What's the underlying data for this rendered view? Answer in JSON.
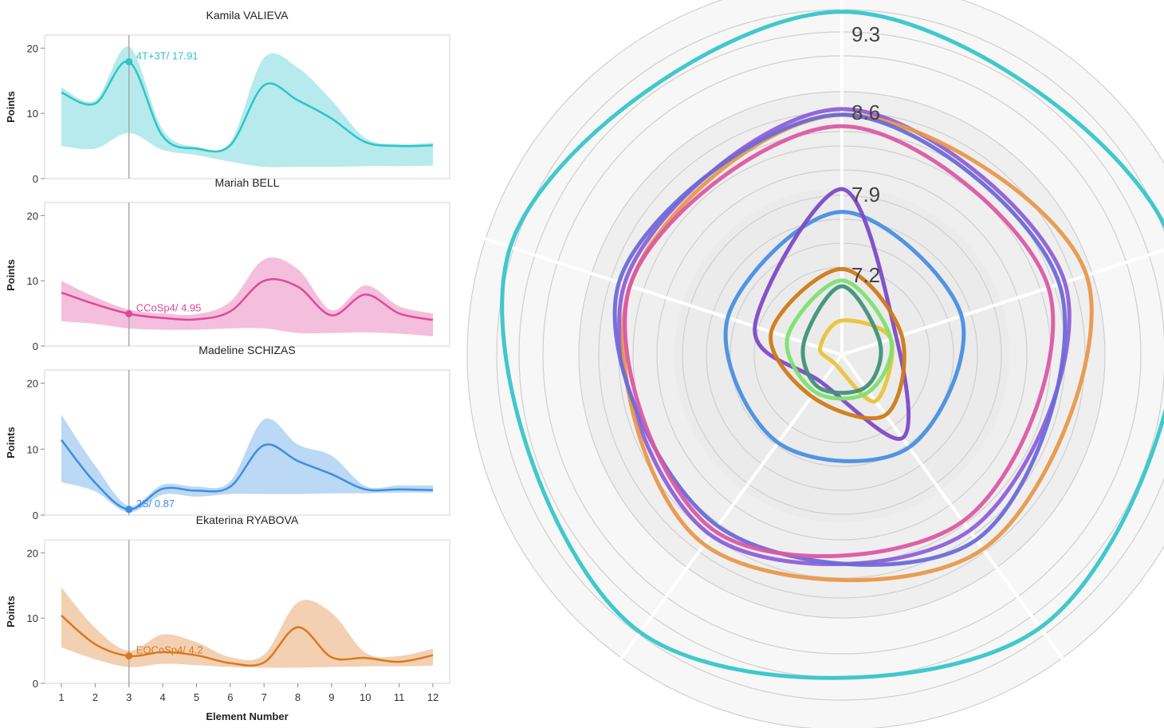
{
  "chart_data": [
    {
      "type": "line",
      "title": "Kamila VALIEVA",
      "ylabel": "Points",
      "xlabel": "",
      "color": "#2ec4c8",
      "ylim": [
        0,
        22
      ],
      "yticks": [
        0,
        10,
        20
      ],
      "x": [
        1,
        2,
        3,
        4,
        5,
        6,
        7,
        8,
        9,
        10,
        11,
        12
      ],
      "values": [
        13.2,
        11.5,
        17.91,
        6.5,
        4.6,
        5.1,
        14.3,
        12,
        9.2,
        5.6,
        5.0,
        5.1
      ],
      "upper": [
        14,
        12,
        20.2,
        7.5,
        4.9,
        5.6,
        18.5,
        17,
        12,
        6.2,
        5.3,
        5.5
      ],
      "lower": [
        5,
        4.6,
        7.0,
        4.4,
        3.6,
        2.6,
        1.8,
        1.8,
        1.8,
        1.9,
        1.9,
        2.0
      ],
      "marker_x": 3,
      "marker_label": "4T+3T/ 17.91"
    },
    {
      "type": "line",
      "title": "Mariah BELL",
      "ylabel": "Points",
      "xlabel": "",
      "color": "#e0489a",
      "ylim": [
        0,
        22
      ],
      "yticks": [
        0,
        10,
        20
      ],
      "x": [
        1,
        2,
        3,
        4,
        5,
        6,
        7,
        8,
        9,
        10,
        11,
        12
      ],
      "values": [
        8.2,
        6.4,
        4.95,
        4.3,
        4.1,
        5.3,
        10.0,
        9.1,
        4.7,
        7.9,
        5.0,
        4.0
      ],
      "upper": [
        10.0,
        7.5,
        5.6,
        5.0,
        4.9,
        6.8,
        13.3,
        11.8,
        5.5,
        9.3,
        6.1,
        5.0
      ],
      "lower": [
        3.8,
        3.4,
        2.7,
        2.5,
        2.5,
        2.7,
        2.7,
        2.0,
        2.0,
        2.1,
        1.9,
        1.5
      ],
      "marker_x": 3,
      "marker_label": "CCoSp4/ 4.95"
    },
    {
      "type": "line",
      "title": "Madeline SCHIZAS",
      "ylabel": "Points",
      "xlabel": "",
      "color": "#3d8ee0",
      "ylim": [
        0,
        22
      ],
      "yticks": [
        0,
        10,
        20
      ],
      "x": [
        1,
        2,
        3,
        4,
        5,
        6,
        7,
        8,
        9,
        10,
        11,
        12
      ],
      "values": [
        11.4,
        4.9,
        0.87,
        4.0,
        3.7,
        4.3,
        10.6,
        8.2,
        6.2,
        3.9,
        3.9,
        3.8
      ],
      "upper": [
        15.2,
        7.5,
        1.4,
        4.6,
        4.3,
        5.1,
        14.5,
        10.7,
        9.0,
        4.4,
        4.5,
        4.5
      ],
      "lower": [
        5.0,
        3.6,
        0.4,
        3.1,
        2.8,
        3.2,
        3.2,
        3.2,
        3.3,
        3.3,
        3.4,
        3.4
      ],
      "marker_x": 3,
      "marker_label": "2S/ 0.87"
    },
    {
      "type": "line",
      "title": "Ekaterina RYABOVA",
      "ylabel": "Points",
      "xlabel": "Element Number",
      "color": "#d9791f",
      "ylim": [
        0,
        22
      ],
      "yticks": [
        0,
        10,
        20
      ],
      "x_tick_labels": [
        "1",
        "2",
        "3",
        "4",
        "5",
        "6",
        "7",
        "8",
        "9",
        "10",
        "11",
        "12"
      ],
      "x": [
        1,
        2,
        3,
        4,
        5,
        6,
        7,
        8,
        9,
        10,
        11,
        12
      ],
      "values": [
        10.4,
        6.0,
        4.2,
        4.8,
        4.3,
        3.1,
        3.2,
        8.6,
        4.0,
        3.9,
        3.3,
        4.3
      ],
      "upper": [
        14.7,
        8.5,
        5.0,
        7.5,
        6.3,
        4.0,
        4.4,
        12.4,
        10.8,
        4.7,
        4.2,
        5.3
      ],
      "lower": [
        5.5,
        3.7,
        2.5,
        3.0,
        2.8,
        2.5,
        2.4,
        2.4,
        2.5,
        2.6,
        2.6,
        2.7
      ],
      "marker_x": 3,
      "marker_label": "EOCoSp4/ 4.2"
    },
    {
      "type": "radar",
      "title": "",
      "ring_labels": [
        "9.3",
        "8.6",
        "7.9",
        "7.2"
      ],
      "ring_values": [
        9.3,
        8.6,
        7.9,
        7.2
      ],
      "center_value": 6.5,
      "axes_count": 5,
      "series": [
        {
          "color": "#35c6c9",
          "values": [
            9.5,
            9.55,
            9.45,
            9.5,
            9.55
          ]
        },
        {
          "color": "#8e60d8",
          "values": [
            8.65,
            8.55,
            8.4,
            8.45,
            8.5
          ]
        },
        {
          "color": "#e8984a",
          "values": [
            8.6,
            8.75,
            8.6,
            8.55,
            8.45
          ]
        },
        {
          "color": "#6a6ad8",
          "values": [
            8.6,
            8.5,
            8.5,
            8.35,
            8.55
          ]
        },
        {
          "color": "#db58a4",
          "values": [
            8.5,
            8.4,
            8.3,
            8.4,
            8.45
          ]
        },
        {
          "color": "#4a8fe2",
          "values": [
            7.75,
            7.6,
            7.5,
            7.45,
            7.55
          ]
        },
        {
          "color": "#7e4ac8",
          "values": [
            7.95,
            7.0,
            7.4,
            6.8,
            7.3
          ]
        },
        {
          "color": "#d07a18",
          "values": [
            7.25,
            7.05,
            7.15,
            6.95,
            7.15
          ]
        },
        {
          "color": "#e9c43a",
          "values": [
            6.8,
            6.95,
            7.0,
            6.6,
            6.7
          ]
        },
        {
          "color": "#7ee070",
          "values": [
            7.15,
            6.95,
            6.9,
            6.9,
            7.0
          ]
        },
        {
          "color": "#3e9478",
          "values": [
            7.1,
            6.85,
            6.85,
            6.85,
            6.85
          ]
        }
      ]
    }
  ]
}
